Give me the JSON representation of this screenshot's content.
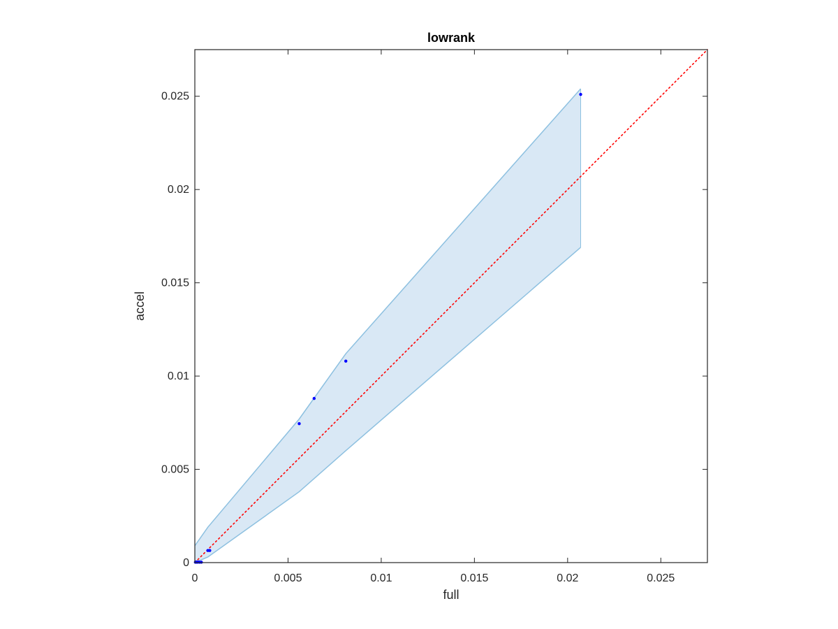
{
  "chart_data": {
    "type": "scatter",
    "title": "lowrank",
    "xlabel": "full",
    "ylabel": "accel",
    "xlim": [
      0,
      0.0275
    ],
    "ylim": [
      0,
      0.0275
    ],
    "xticks": [
      0,
      0.005,
      0.01,
      0.015,
      0.02,
      0.025
    ],
    "xtick_labels": [
      "0",
      "0.005",
      "0.01",
      "0.015",
      "0.02",
      "0.025"
    ],
    "yticks": [
      0,
      0.005,
      0.01,
      0.015,
      0.02,
      0.025
    ],
    "ytick_labels": [
      "0",
      "0.005",
      "0.01",
      "0.015",
      "0.02",
      "0.025"
    ],
    "grid": false,
    "points": {
      "x": [
        3e-05,
        8e-05,
        0.00012,
        0.00018,
        0.00025,
        0.00035,
        0.0007,
        0.0008,
        0.0056,
        0.0064,
        0.0081,
        0.0207
      ],
      "y": [
        2e-05,
        3e-05,
        2e-05,
        3e-05,
        2e-05,
        2e-05,
        0.00065,
        0.00065,
        0.00745,
        0.0088,
        0.0108,
        0.0251
      ],
      "color": "#0000ff"
    },
    "band": {
      "x": [
        0,
        0.0007,
        0.0056,
        0.0081,
        0.0207
      ],
      "upper": [
        0.0009,
        0.0019,
        0.0077,
        0.0112,
        0.0254
      ],
      "lower": [
        0,
        0.0003,
        0.0038,
        0.006,
        0.0169
      ],
      "fill_color": "#d9e8f5",
      "edge_color": "#8dc0e0"
    },
    "reference_line": {
      "from": [
        0,
        0
      ],
      "to": [
        0.0275,
        0.0275
      ],
      "style": "dotted",
      "color": "#ff0000"
    }
  }
}
